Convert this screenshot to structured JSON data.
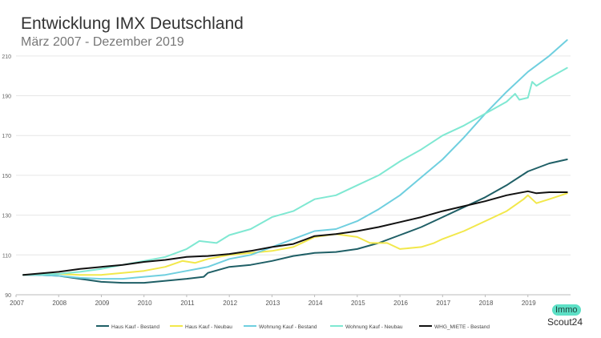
{
  "header": {
    "title": "Entwicklung IMX Deutschland",
    "subtitle": "März 2007 - Dezember 2019"
  },
  "logo": {
    "top": "Immo",
    "bottom": "Scout24"
  },
  "chart_data": {
    "type": "line",
    "title": "Entwicklung IMX Deutschland",
    "subtitle": "März 2007 - Dezember 2019",
    "xlabel": "",
    "ylabel": "",
    "xlim": [
      2007.0,
      2020.0
    ],
    "ylim": [
      90,
      220
    ],
    "y_ticks": [
      90,
      110,
      130,
      150,
      170,
      190,
      210
    ],
    "x_ticks": [
      "2007",
      "2008",
      "2009",
      "2010",
      "2011",
      "2012",
      "2013",
      "2014",
      "2015",
      "2016",
      "2017",
      "2018",
      "2019"
    ],
    "x_tick_values": [
      2007,
      2008,
      2009,
      2010,
      2011,
      2012,
      2013,
      2014,
      2015,
      2016,
      2017,
      2018,
      2019
    ],
    "grid": "horizontal",
    "legend_position": "bottom",
    "series": [
      {
        "name": "Haus Kauf - Bestand",
        "color": "#1f5f66",
        "points": [
          [
            2007.17,
            100
          ],
          [
            2007.5,
            100
          ],
          [
            2008.0,
            99.5
          ],
          [
            2008.5,
            98
          ],
          [
            2009.0,
            96.5
          ],
          [
            2009.5,
            96
          ],
          [
            2010.0,
            96
          ],
          [
            2010.5,
            97
          ],
          [
            2011.0,
            98
          ],
          [
            2011.4,
            99
          ],
          [
            2011.5,
            101
          ],
          [
            2012.0,
            104
          ],
          [
            2012.5,
            105
          ],
          [
            2013.0,
            107
          ],
          [
            2013.5,
            109.5
          ],
          [
            2014.0,
            111
          ],
          [
            2014.5,
            111.5
          ],
          [
            2015.0,
            113
          ],
          [
            2015.5,
            116
          ],
          [
            2016.0,
            120
          ],
          [
            2016.5,
            124
          ],
          [
            2017.0,
            129
          ],
          [
            2017.5,
            134
          ],
          [
            2018.0,
            139
          ],
          [
            2018.5,
            145
          ],
          [
            2019.0,
            152
          ],
          [
            2019.5,
            156
          ],
          [
            2019.92,
            158
          ]
        ]
      },
      {
        "name": "Haus Kauf - Neubau",
        "color": "#f2e84b",
        "points": [
          [
            2007.17,
            100
          ],
          [
            2008.0,
            100.5
          ],
          [
            2008.5,
            100
          ],
          [
            2009.0,
            100
          ],
          [
            2009.5,
            101
          ],
          [
            2010.0,
            102
          ],
          [
            2010.5,
            104
          ],
          [
            2010.9,
            107
          ],
          [
            2011.2,
            106
          ],
          [
            2011.5,
            108
          ],
          [
            2012.0,
            110
          ],
          [
            2012.5,
            111
          ],
          [
            2013.0,
            112
          ],
          [
            2013.5,
            114
          ],
          [
            2014.0,
            119
          ],
          [
            2014.5,
            120.5
          ],
          [
            2015.0,
            119
          ],
          [
            2015.3,
            116
          ],
          [
            2015.7,
            116
          ],
          [
            2016.0,
            113
          ],
          [
            2016.5,
            114
          ],
          [
            2016.8,
            116
          ],
          [
            2017.0,
            118
          ],
          [
            2017.5,
            122
          ],
          [
            2018.0,
            127
          ],
          [
            2018.5,
            132
          ],
          [
            2018.9,
            138
          ],
          [
            2019.0,
            140
          ],
          [
            2019.2,
            136
          ],
          [
            2019.5,
            138
          ],
          [
            2019.92,
            141
          ]
        ]
      },
      {
        "name": "Wohnung Kauf - Bestand",
        "color": "#6fcfdf",
        "points": [
          [
            2007.17,
            100
          ],
          [
            2007.5,
            100
          ],
          [
            2008.0,
            99.5
          ],
          [
            2008.5,
            98.5
          ],
          [
            2009.0,
            98
          ],
          [
            2009.5,
            98
          ],
          [
            2010.0,
            99
          ],
          [
            2010.5,
            100
          ],
          [
            2011.0,
            102
          ],
          [
            2011.5,
            104
          ],
          [
            2012.0,
            108
          ],
          [
            2012.5,
            110
          ],
          [
            2013.0,
            114
          ],
          [
            2013.5,
            118
          ],
          [
            2014.0,
            122
          ],
          [
            2014.5,
            123
          ],
          [
            2015.0,
            127
          ],
          [
            2015.5,
            133
          ],
          [
            2016.0,
            140
          ],
          [
            2016.5,
            149
          ],
          [
            2017.0,
            158
          ],
          [
            2017.5,
            169
          ],
          [
            2018.0,
            181
          ],
          [
            2018.5,
            192
          ],
          [
            2019.0,
            202
          ],
          [
            2019.5,
            210
          ],
          [
            2019.92,
            218
          ]
        ]
      },
      {
        "name": "Wohnung Kauf - Neubau",
        "color": "#7fe8d2",
        "points": [
          [
            2007.17,
            100
          ],
          [
            2008.0,
            100.5
          ],
          [
            2008.5,
            101.5
          ],
          [
            2009.0,
            103
          ],
          [
            2009.5,
            105
          ],
          [
            2010.0,
            107
          ],
          [
            2010.5,
            109
          ],
          [
            2011.0,
            113
          ],
          [
            2011.3,
            117
          ],
          [
            2011.7,
            116
          ],
          [
            2012.0,
            120
          ],
          [
            2012.5,
            123
          ],
          [
            2013.0,
            129
          ],
          [
            2013.5,
            132
          ],
          [
            2014.0,
            138
          ],
          [
            2014.5,
            140
          ],
          [
            2015.0,
            145
          ],
          [
            2015.5,
            150
          ],
          [
            2016.0,
            157
          ],
          [
            2016.5,
            163
          ],
          [
            2017.0,
            170
          ],
          [
            2017.5,
            175
          ],
          [
            2018.0,
            181
          ],
          [
            2018.5,
            187
          ],
          [
            2018.7,
            191
          ],
          [
            2018.8,
            188
          ],
          [
            2019.0,
            189
          ],
          [
            2019.1,
            197
          ],
          [
            2019.2,
            195
          ],
          [
            2019.5,
            199
          ],
          [
            2019.92,
            204
          ]
        ]
      },
      {
        "name": "WHG_MIETE - Bestand",
        "color": "#111111",
        "points": [
          [
            2007.17,
            100
          ],
          [
            2008.0,
            101.5
          ],
          [
            2008.5,
            103
          ],
          [
            2009.0,
            104
          ],
          [
            2009.5,
            105
          ],
          [
            2010.0,
            106.5
          ],
          [
            2010.5,
            107.5
          ],
          [
            2011.0,
            109
          ],
          [
            2011.5,
            109.5
          ],
          [
            2012.0,
            110.5
          ],
          [
            2012.5,
            112
          ],
          [
            2013.0,
            114
          ],
          [
            2013.5,
            115.5
          ],
          [
            2014.0,
            119.5
          ],
          [
            2014.5,
            120.5
          ],
          [
            2015.0,
            122
          ],
          [
            2015.5,
            124
          ],
          [
            2016.0,
            126.5
          ],
          [
            2016.5,
            129
          ],
          [
            2017.0,
            132
          ],
          [
            2017.5,
            134.5
          ],
          [
            2018.0,
            137
          ],
          [
            2018.5,
            140
          ],
          [
            2019.0,
            142
          ],
          [
            2019.2,
            141
          ],
          [
            2019.5,
            141.5
          ],
          [
            2019.92,
            141.5
          ]
        ]
      }
    ]
  }
}
